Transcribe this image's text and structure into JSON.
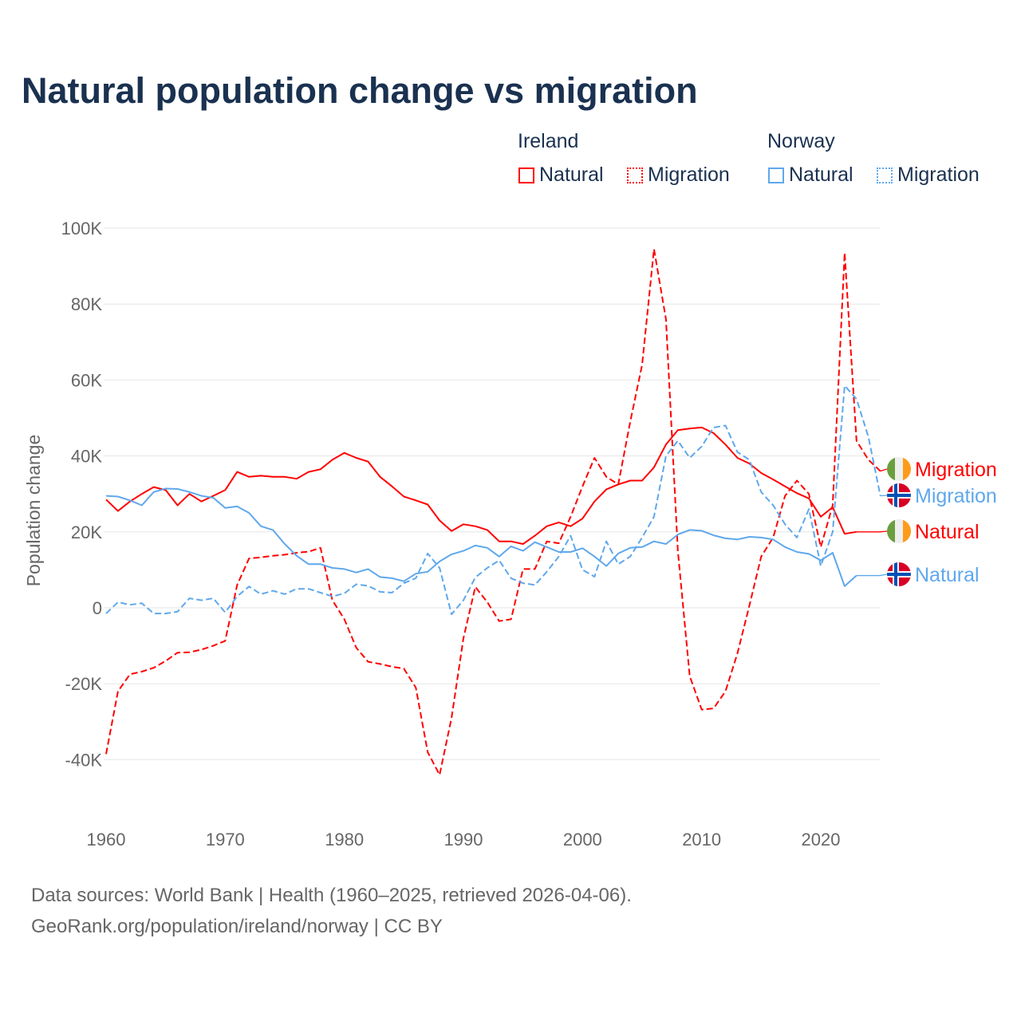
{
  "title": "Natural population change vs migration",
  "legend": {
    "groups": [
      {
        "name": "Ireland",
        "items": [
          {
            "label": "Natural",
            "style": "solid"
          },
          {
            "label": "Migration",
            "style": "dotted"
          }
        ],
        "color": "#ff0000"
      },
      {
        "name": "Norway",
        "items": [
          {
            "label": "Natural",
            "style": "solid"
          },
          {
            "label": "Migration",
            "style": "dotted"
          }
        ],
        "color": "#5fa8ec"
      }
    ]
  },
  "footer": {
    "line1": "Data sources: World Bank | Health (1960–2025, retrieved 2026-04-06).",
    "line2": "GeoRank.org/population/ireland/norway | CC BY"
  },
  "chart_data": {
    "type": "line",
    "title": "Natural population change vs migration",
    "xlabel": "",
    "ylabel": "Population change",
    "xlim": [
      1960,
      2025
    ],
    "ylim": [
      -40000,
      100000
    ],
    "x_ticks": [
      1960,
      1970,
      1980,
      1990,
      2000,
      2010,
      2020
    ],
    "x_tick_labels": [
      "1960",
      "1970",
      "1980",
      "1990",
      "2000",
      "2010",
      "2020"
    ],
    "y_ticks": [
      -40000,
      -20000,
      0,
      20000,
      40000,
      60000,
      80000,
      100000
    ],
    "y_tick_labels": [
      "-40K",
      "-20K",
      "0",
      "20K",
      "40K",
      "60K",
      "80K",
      "100K"
    ],
    "grid": true,
    "legend_position": "top-right",
    "x_start": 1960,
    "series": [
      {
        "name": "Ireland Natural",
        "end_label": "Natural",
        "country": "Ireland",
        "color": "#ff0000",
        "dash": false,
        "values": [
          28.5,
          25.5,
          28,
          30,
          31.8,
          31,
          27,
          30,
          28,
          29.5,
          31,
          35.8,
          34.5,
          34.8,
          34.5,
          34.5,
          34,
          35.8,
          36.5,
          39,
          40.8,
          39.5,
          38.5,
          34.5,
          32,
          29.3,
          28.3,
          27.2,
          23,
          20.2,
          22,
          21.5,
          20.5,
          17.5,
          17.5,
          16.8,
          19,
          21.5,
          22.5,
          21.5,
          23.5,
          28,
          31.2,
          32.5,
          33.5,
          33.5,
          37,
          43,
          46.8,
          47.2,
          47.5,
          46,
          43,
          39.5,
          38,
          35.5,
          33.8,
          32,
          30.2,
          28.8,
          24,
          26.5,
          19.5,
          20
        ]
      },
      {
        "name": "Ireland Migration",
        "end_label": "Migration",
        "country": "Ireland",
        "color": "#ff0000",
        "dash": true,
        "values": [
          -38.5,
          -22,
          -17.5,
          -16.8,
          -15.8,
          -14,
          -11.8,
          -11.7,
          -11,
          -10,
          -8.7,
          6,
          13,
          13.3,
          13.7,
          14,
          14.5,
          14.8,
          15.8,
          2,
          -3,
          -10.5,
          -14.2,
          -14.8,
          -15.5,
          -16,
          -21,
          -38,
          -44,
          -29,
          -8,
          5.5,
          1.5,
          -3.5,
          -3,
          10.2,
          10.2,
          17.5,
          17,
          24,
          32,
          39.5,
          34.5,
          32.5,
          49,
          64,
          94.5,
          76,
          15,
          -18,
          -26.8,
          -26.5,
          -22,
          -12,
          0.5,
          13.5,
          18.5,
          29.5,
          33.5,
          30,
          16,
          27,
          93.5,
          44,
          39,
          36
        ]
      },
      {
        "name": "Norway Natural",
        "end_label": "Natural",
        "country": "Norway",
        "color": "#5fa8ec",
        "dash": false,
        "values": [
          29.5,
          29.3,
          28.3,
          27,
          30.5,
          31.4,
          31.3,
          30.5,
          29.5,
          29,
          26.3,
          26.7,
          25,
          21.5,
          20.5,
          16.8,
          13.7,
          11.5,
          11.5,
          10.5,
          10.2,
          9.3,
          10.2,
          8.1,
          7.8,
          7,
          9,
          9.5,
          12.2,
          14.1,
          15,
          16.4,
          15.8,
          13.5,
          16.2,
          15,
          17.3,
          16,
          14.7,
          14.7,
          15.7,
          13.5,
          11,
          14.3,
          15.8,
          16,
          17.5,
          16.8,
          19.3,
          20.5,
          20.3,
          19.1,
          18.3,
          18,
          18.7,
          18.5,
          18,
          16,
          14.7,
          14.2,
          12.5,
          14.5,
          5.7,
          8.5
        ]
      },
      {
        "name": "Norway Migration",
        "end_label": "Migration",
        "country": "Norway",
        "color": "#5fa8ec",
        "dash": true,
        "values": [
          -1.5,
          1.5,
          0.8,
          1.2,
          -1.5,
          -1.5,
          -1,
          2.5,
          2,
          2.5,
          -1.2,
          3,
          5.6,
          3.6,
          4.5,
          3.6,
          5,
          5,
          4,
          3,
          3.8,
          6.2,
          5.8,
          4.2,
          4,
          6.5,
          7.8,
          14.3,
          10.5,
          -1.7,
          2,
          8,
          10.5,
          12.5,
          7.8,
          6.5,
          6,
          9.5,
          13.5,
          19,
          10,
          8.2,
          17.5,
          11.5,
          13.5,
          18.5,
          24,
          40,
          44,
          39.5,
          42.5,
          47.5,
          48,
          41,
          39,
          30.5,
          27,
          22,
          18.5,
          26,
          11,
          20,
          58.5,
          55,
          45,
          29.5
        ]
      }
    ],
    "value_unit": "thousands"
  }
}
